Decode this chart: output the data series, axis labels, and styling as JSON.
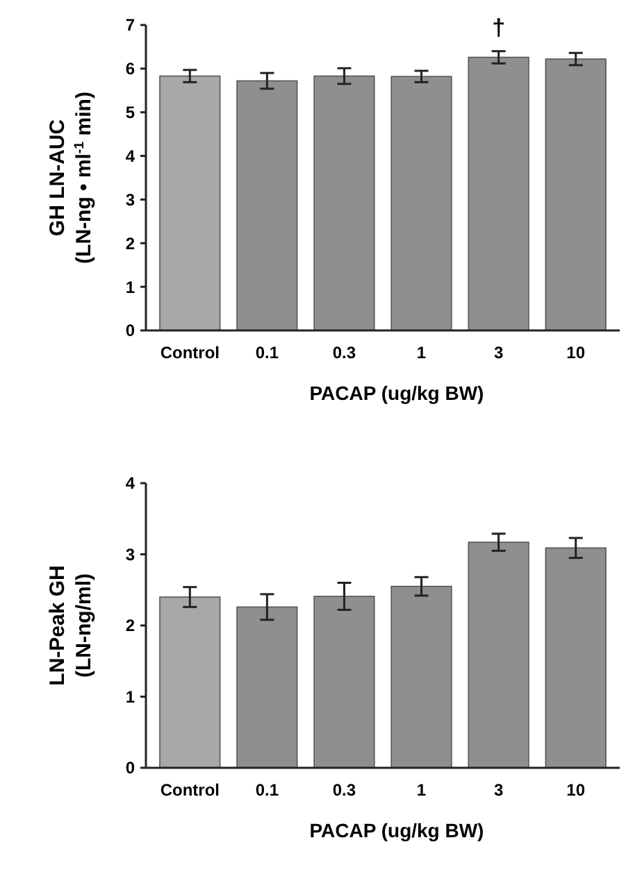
{
  "chart_data": [
    {
      "type": "bar",
      "ylabel": "GH LN-AUC\n(LN-ng • ml$^{-1}$ min)",
      "xlabel": "PACAP (ug/kg BW)",
      "categories": [
        "Control",
        "0.1",
        "0.3",
        "1",
        "3",
        "10"
      ],
      "values": [
        5.83,
        5.72,
        5.83,
        5.82,
        6.26,
        6.22
      ],
      "errors": [
        0.14,
        0.18,
        0.18,
        0.13,
        0.14,
        0.14
      ],
      "colors": [
        "#a8a8a8",
        "#8f8f8f",
        "#8f8f8f",
        "#8f8f8f",
        "#8f8f8f",
        "#8f8f8f"
      ],
      "ylim": [
        0,
        7
      ],
      "yticks": [
        0,
        1,
        2,
        3,
        4,
        5,
        6,
        7
      ],
      "annotations": [
        {
          "text": "†",
          "x": "3",
          "y": 6.26
        }
      ]
    },
    {
      "type": "bar",
      "ylabel": "LN-Peak GH\n(LN-ng/ml)",
      "xlabel": "PACAP (ug/kg BW)",
      "categories": [
        "Control",
        "0.1",
        "0.3",
        "1",
        "3",
        "10"
      ],
      "values": [
        2.4,
        2.26,
        2.41,
        2.55,
        3.17,
        3.09
      ],
      "errors": [
        0.14,
        0.18,
        0.19,
        0.13,
        0.12,
        0.14
      ],
      "colors": [
        "#a8a8a8",
        "#8f8f8f",
        "#8f8f8f",
        "#8f8f8f",
        "#8f8f8f",
        "#8f8f8f"
      ],
      "ylim": [
        0,
        4
      ],
      "yticks": [
        0,
        1,
        2,
        3,
        4
      ]
    }
  ]
}
